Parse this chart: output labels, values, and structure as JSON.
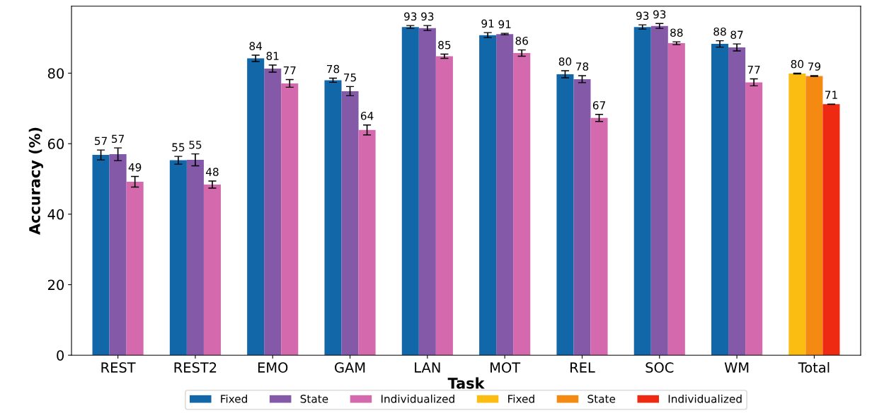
{
  "chart_data": {
    "type": "bar",
    "xlabel": "Task",
    "ylabel": "Accuracy (%)",
    "categories": [
      "REST",
      "REST2",
      "EMO",
      "GAM",
      "LAN",
      "MOT",
      "REL",
      "SOC",
      "WM",
      "Total"
    ],
    "ylim": [
      0,
      99
    ],
    "yticks": [
      0,
      20,
      40,
      60,
      80
    ],
    "grid": false,
    "legend": "bottom",
    "series": [
      {
        "name": "Fixed",
        "color": "#1167a8",
        "values": [
          56.8,
          55.3,
          84.2,
          78.0,
          93.1,
          90.8,
          79.7,
          93.1,
          88.3,
          null
        ],
        "errors": [
          1.4,
          1.1,
          0.9,
          0.6,
          0.4,
          0.7,
          1.0,
          0.6,
          0.9,
          null
        ],
        "value_labels": [
          "57",
          "55",
          "84",
          "78",
          "93",
          "91",
          "80",
          "93",
          "88",
          null
        ]
      },
      {
        "name": "State",
        "color": "#8459a8",
        "values": [
          57.0,
          55.4,
          81.3,
          74.9,
          92.8,
          91.1,
          78.3,
          93.4,
          87.3,
          null
        ],
        "errors": [
          1.8,
          1.7,
          1.0,
          1.3,
          0.7,
          0.2,
          1.0,
          0.7,
          1.0,
          null
        ],
        "value_labels": [
          "57",
          "55",
          "81",
          "75",
          "93",
          "91",
          "78",
          "93",
          "87",
          null
        ]
      },
      {
        "name": "Individualized",
        "color": "#d46aad",
        "values": [
          49.2,
          48.4,
          77.1,
          63.9,
          84.8,
          85.7,
          67.3,
          88.5,
          77.4,
          null
        ],
        "errors": [
          1.5,
          1.0,
          1.1,
          1.4,
          0.6,
          0.9,
          1.0,
          0.4,
          1.0,
          null
        ],
        "value_labels": [
          "49",
          "48",
          "77",
          "64",
          "85",
          "86",
          "67",
          "88",
          "77",
          null
        ]
      },
      {
        "name": "Fixed",
        "color": "#fbbd12",
        "values": [
          null,
          null,
          null,
          null,
          null,
          null,
          null,
          null,
          null,
          79.9
        ],
        "errors": [
          null,
          null,
          null,
          null,
          null,
          null,
          null,
          null,
          null,
          0.1
        ],
        "value_labels": [
          null,
          null,
          null,
          null,
          null,
          null,
          null,
          null,
          null,
          "80"
        ]
      },
      {
        "name": "State",
        "color": "#f58a12",
        "values": [
          null,
          null,
          null,
          null,
          null,
          null,
          null,
          null,
          null,
          79.2
        ],
        "errors": [
          null,
          null,
          null,
          null,
          null,
          null,
          null,
          null,
          null,
          0.1
        ],
        "value_labels": [
          null,
          null,
          null,
          null,
          null,
          null,
          null,
          null,
          null,
          "79"
        ]
      },
      {
        "name": "Individualized",
        "color": "#ef2a12",
        "values": [
          null,
          null,
          null,
          null,
          null,
          null,
          null,
          null,
          null,
          71.2
        ],
        "errors": [
          null,
          null,
          null,
          null,
          null,
          null,
          null,
          null,
          null,
          0.05
        ],
        "value_labels": [
          null,
          null,
          null,
          null,
          null,
          null,
          null,
          null,
          null,
          "71"
        ]
      }
    ]
  }
}
